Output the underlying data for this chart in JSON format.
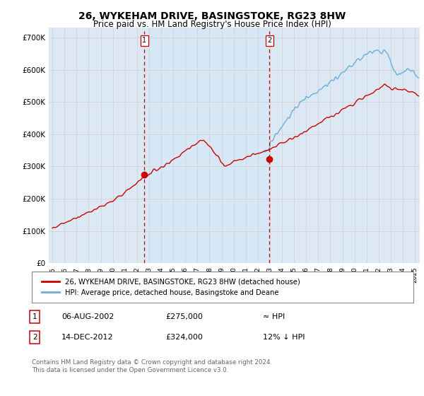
{
  "title": "26, WYKEHAM DRIVE, BASINGSTOKE, RG23 8HW",
  "subtitle": "Price paid vs. HM Land Registry's House Price Index (HPI)",
  "ylabel_ticks": [
    "£0",
    "£100K",
    "£200K",
    "£300K",
    "£400K",
    "£500K",
    "£600K",
    "£700K"
  ],
  "ytick_values": [
    0,
    100000,
    200000,
    300000,
    400000,
    500000,
    600000,
    700000
  ],
  "ylim": [
    0,
    730000
  ],
  "xlim_start": 1994.7,
  "xlim_end": 2025.4,
  "marker1_x": 2002.6,
  "marker1_y": 275000,
  "marker2_x": 2012.96,
  "marker2_y": 324000,
  "line1_color": "#cc0000",
  "line2_color": "#6baed6",
  "fill_color": "#d6e8f5",
  "legend_line1": "26, WYKEHAM DRIVE, BASINGSTOKE, RG23 8HW (detached house)",
  "legend_line2": "HPI: Average price, detached house, Basingstoke and Deane",
  "annotation1_date": "06-AUG-2002",
  "annotation1_price": "£275,000",
  "annotation1_hpi": "≈ HPI",
  "annotation2_date": "14-DEC-2012",
  "annotation2_price": "£324,000",
  "annotation2_hpi": "12% ↓ HPI",
  "footer": "Contains HM Land Registry data © Crown copyright and database right 2024.\nThis data is licensed under the Open Government Licence v3.0.",
  "bg_color": "#dce9f5",
  "plot_bg": "#ffffff",
  "grid_color": "#d0d0d0",
  "title_fontsize": 10,
  "subtitle_fontsize": 8.5,
  "tick_fontsize": 7.5
}
